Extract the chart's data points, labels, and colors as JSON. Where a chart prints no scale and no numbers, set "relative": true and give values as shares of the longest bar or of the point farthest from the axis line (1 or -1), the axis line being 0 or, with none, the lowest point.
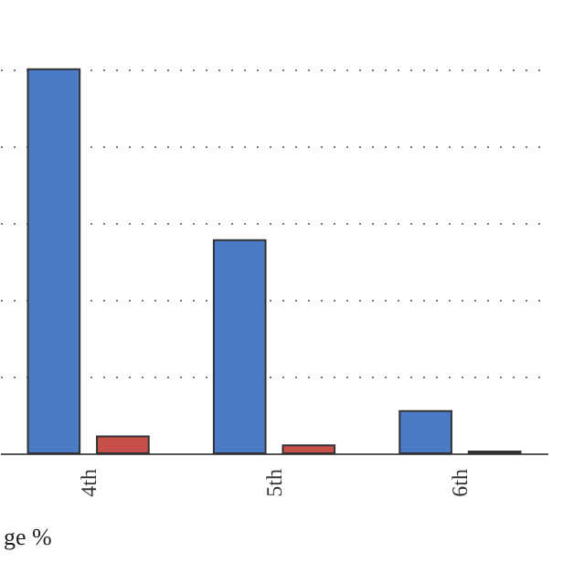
{
  "chart_data": {
    "type": "bar",
    "relative": true,
    "categories": [
      "4th",
      "5th",
      "6th"
    ],
    "series": [
      {
        "color": "#4a7bc4",
        "values": [
          1,
          0.555,
          0.11
        ]
      },
      {
        "color": "#c8504b",
        "values": [
          0.044,
          0.021,
          0.005
        ]
      }
    ],
    "grid": "y",
    "annotations": [
      "ge %"
    ]
  }
}
